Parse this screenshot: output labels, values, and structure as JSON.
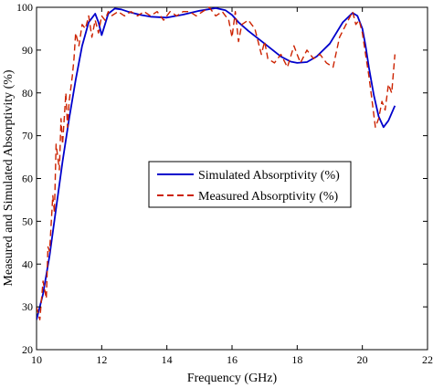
{
  "chart_data": {
    "type": "line",
    "xlabel": "Frequency (GHz)",
    "ylabel": "Measured and Simulated Absorptivity (%)",
    "xlim": [
      10,
      22
    ],
    "ylim": [
      20,
      100
    ],
    "xticks": [
      "10",
      "12",
      "14",
      "16",
      "18",
      "20",
      "22"
    ],
    "yticks": [
      "20",
      "30",
      "40",
      "50",
      "60",
      "70",
      "80",
      "90",
      "100"
    ],
    "grid": false,
    "legend_position": "center",
    "series": [
      {
        "name": "Simulated Absorptivity (%)",
        "color": "#0000cc",
        "style": "solid",
        "x": [
          10,
          10.2,
          10.4,
          10.6,
          10.8,
          11,
          11.2,
          11.4,
          11.6,
          11.8,
          11.9,
          12,
          12.1,
          12.2,
          12.4,
          12.6,
          12.8,
          13,
          13.2,
          13.5,
          14,
          14.5,
          15,
          15.5,
          15.8,
          16,
          16.2,
          16.5,
          17,
          17.5,
          17.8,
          18,
          18.3,
          18.6,
          19,
          19.4,
          19.7,
          19.85,
          20,
          20.1,
          20.2,
          20.35,
          20.5,
          20.65,
          20.8,
          21
        ],
        "y": [
          27,
          33,
          42,
          53,
          64,
          74,
          83,
          91,
          96.5,
          98.5,
          96.5,
          93.5,
          96,
          98.5,
          99.7,
          99.5,
          99,
          98.6,
          98.2,
          97.8,
          97.6,
          98.3,
          99.2,
          99.8,
          99.3,
          98.2,
          96.5,
          94.5,
          91.5,
          88.5,
          87.3,
          87,
          87.2,
          88.5,
          91.5,
          96.5,
          98.7,
          98,
          95,
          91,
          86,
          79.5,
          74.5,
          72,
          73.5,
          77
        ]
      },
      {
        "name": "Measured Absorptivity (%)",
        "color": "#cc2200",
        "style": "dashed",
        "x": [
          10,
          10.1,
          10.2,
          10.3,
          10.35,
          10.4,
          10.5,
          10.55,
          10.6,
          10.7,
          10.75,
          10.8,
          10.9,
          10.95,
          11,
          11.1,
          11.15,
          11.2,
          11.3,
          11.4,
          11.5,
          11.6,
          11.7,
          11.8,
          11.9,
          12,
          12.1,
          12.2,
          12.3,
          12.5,
          12.7,
          12.9,
          13.1,
          13.3,
          13.5,
          13.7,
          13.9,
          14.1,
          14.3,
          14.5,
          14.7,
          14.9,
          15.1,
          15.3,
          15.5,
          15.7,
          15.9,
          16,
          16.1,
          16.2,
          16.3,
          16.5,
          16.7,
          16.9,
          17,
          17.1,
          17.3,
          17.5,
          17.7,
          17.9,
          18,
          18.1,
          18.3,
          18.5,
          18.7,
          18.9,
          19.1,
          19.3,
          19.5,
          19.7,
          19.8,
          19.9,
          20,
          20.1,
          20.2,
          20.3,
          20.4,
          20.5,
          20.6,
          20.7,
          20.8,
          20.9,
          21
        ],
        "y": [
          30,
          27,
          36,
          32,
          44,
          43,
          56,
          52,
          68,
          62,
          74,
          68,
          80,
          72,
          78,
          84,
          88,
          94,
          91,
          96,
          95,
          98,
          93,
          97,
          94,
          98,
          97,
          99,
          98,
          99,
          98,
          99,
          98,
          99,
          98,
          99,
          97,
          99,
          98,
          99,
          99,
          98,
          99,
          100,
          98,
          99,
          97,
          93,
          99,
          92,
          96,
          97,
          95,
          89,
          92,
          88,
          87,
          89,
          86,
          91,
          89,
          87,
          90,
          88,
          89,
          87,
          86,
          93,
          96,
          99,
          96,
          97,
          94,
          89,
          84,
          78,
          72,
          74,
          78,
          76,
          82,
          80,
          89
        ]
      }
    ]
  }
}
